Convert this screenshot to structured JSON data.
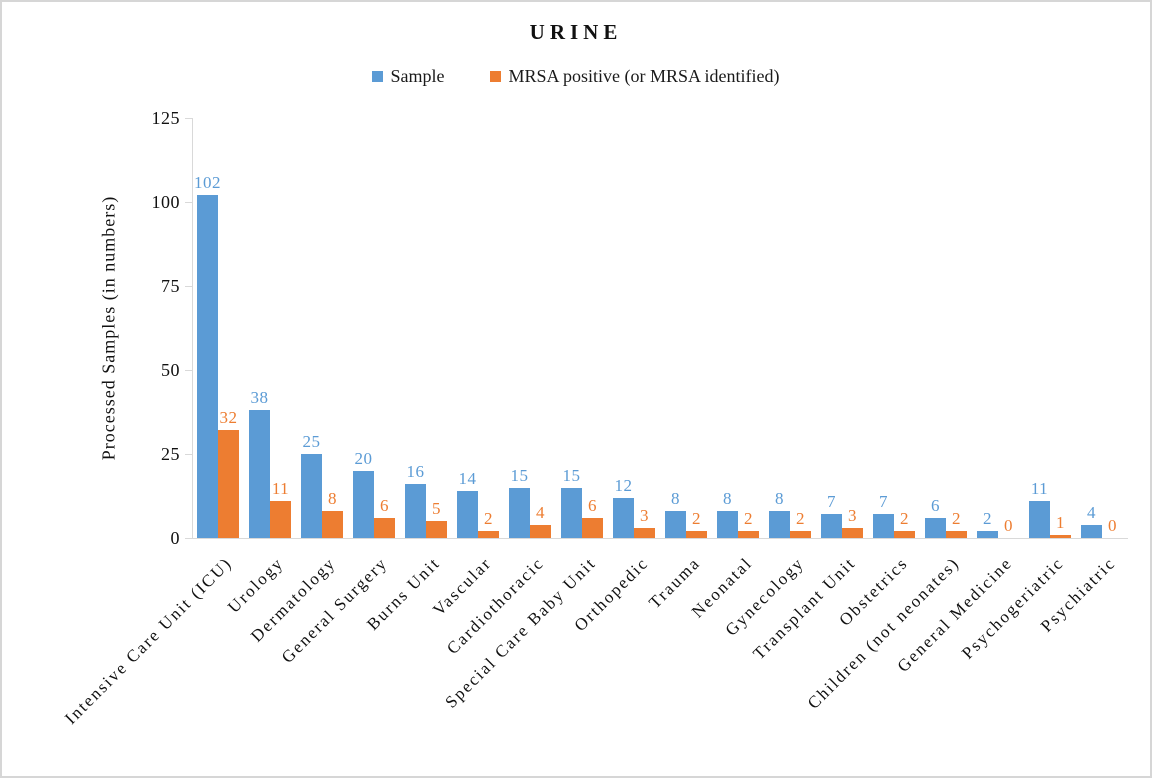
{
  "page": {
    "background": "#ffffff",
    "border_color": "#d6d6d6",
    "axis_color": "#d9d9d9"
  },
  "chart_data": {
    "type": "bar",
    "title": "URINE",
    "xlabel": "",
    "ylabel": "Processed Samples (in numbers)",
    "ylim": [
      0,
      125
    ],
    "yticks": [
      0,
      25,
      50,
      75,
      100,
      125
    ],
    "grid": false,
    "legend_position": "top-center",
    "data_labels": true,
    "categories": [
      "Intensive Care Unit (ICU)",
      "Urology",
      "Dermatology",
      "General Surgery",
      "Burns Unit",
      "Vascular",
      "Cardiothoracic",
      "Special Care Baby Unit",
      "Orthopedic",
      "Trauma",
      "Neonatal",
      "Gynecology",
      "Transplant Unit",
      "Obstetrics",
      "Children (not neonates)",
      "General Medicine",
      "Psychogeriatric",
      "Psychiatric"
    ],
    "series": [
      {
        "name": "Sample",
        "color": "#5B9BD5",
        "values": [
          102,
          38,
          25,
          20,
          16,
          14,
          15,
          15,
          12,
          8,
          8,
          8,
          7,
          7,
          6,
          2,
          11,
          4
        ]
      },
      {
        "name": "MRSA positive (or MRSA identified)",
        "color": "#ED7D31",
        "values": [
          32,
          11,
          8,
          6,
          5,
          2,
          4,
          6,
          3,
          2,
          2,
          2,
          3,
          2,
          2,
          0,
          1,
          0
        ]
      }
    ]
  }
}
